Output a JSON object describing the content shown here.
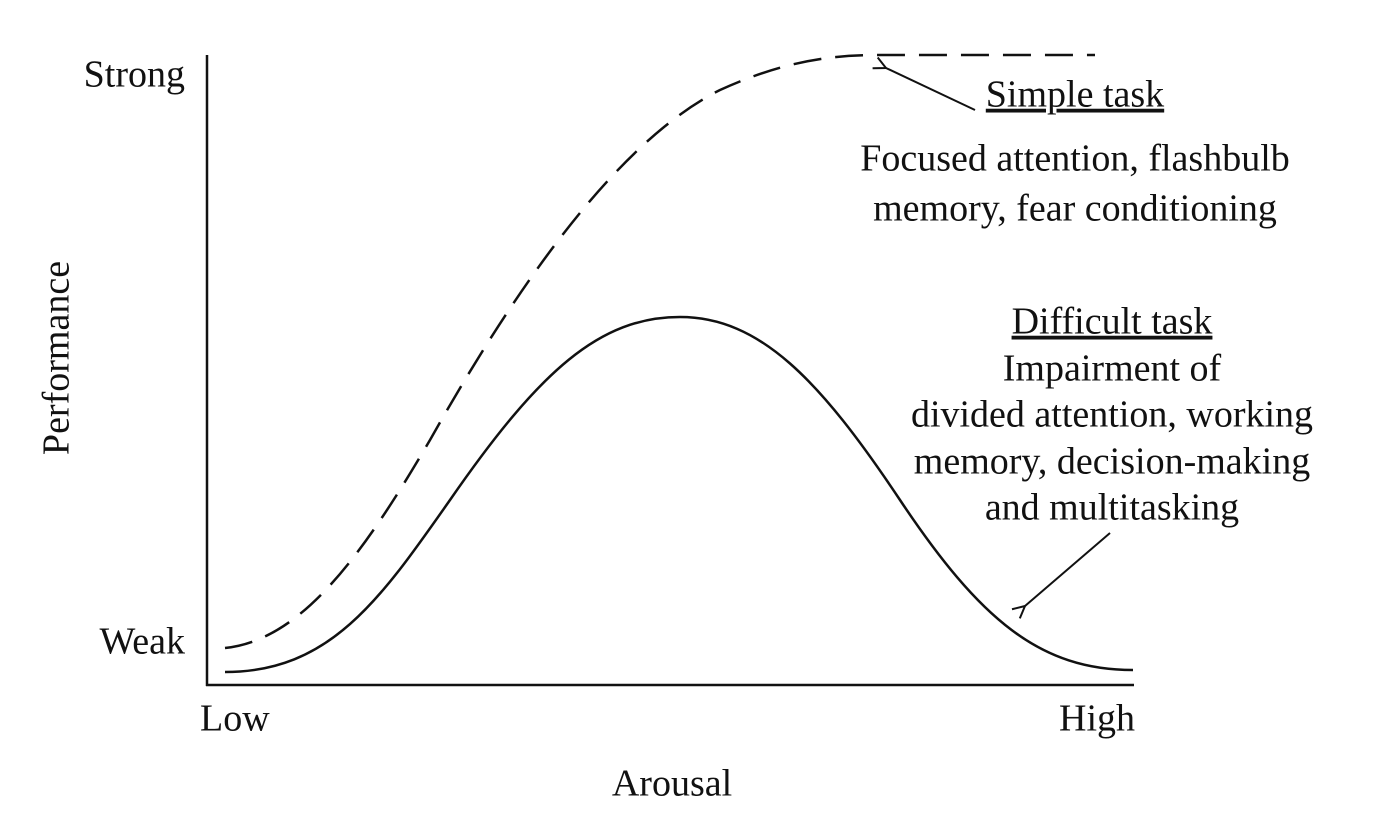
{
  "axes": {
    "y_label": "Performance",
    "y_top": "Strong",
    "y_bottom": "Weak",
    "x_label": "Arousal",
    "x_left": "Low",
    "x_right": "High"
  },
  "simple_task": {
    "title": "Simple task",
    "lines": [
      "Focused attention, flashbulb",
      "memory, fear conditioning"
    ]
  },
  "difficult_task": {
    "title": "Difficult task",
    "lines": [
      "Impairment of",
      "divided attention, working",
      "memory, decision-making",
      "and multitasking"
    ]
  }
}
